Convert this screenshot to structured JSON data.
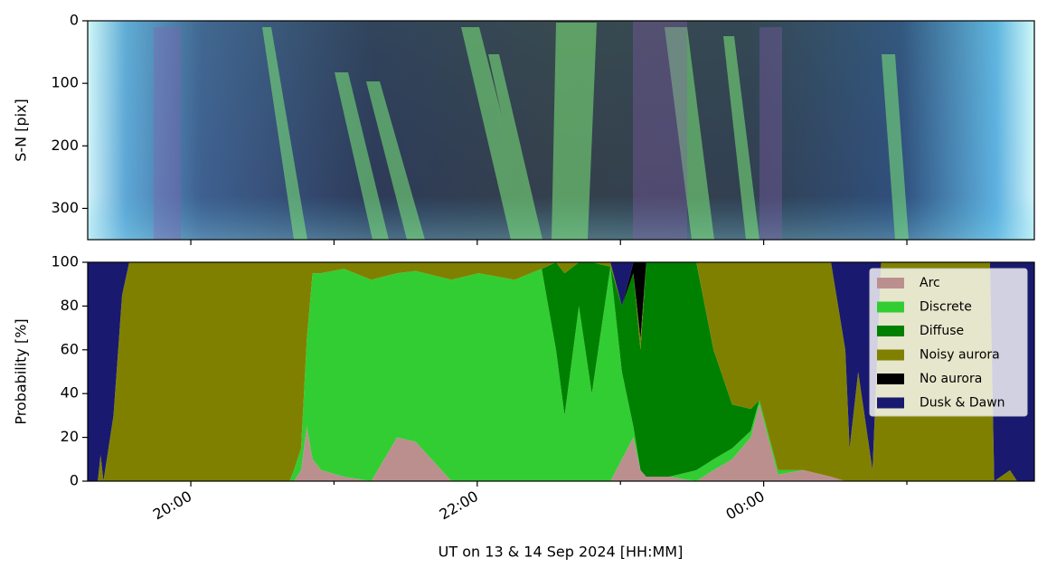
{
  "chart_data": [
    {
      "type": "image",
      "ylabel": "S-N [pix]",
      "xlim": [
        19.28,
        25.89
      ],
      "ylim": [
        350,
        0
      ],
      "yticks": [
        0,
        100,
        200,
        300
      ],
      "xticks": [
        20,
        21,
        22,
        23,
        24,
        25
      ]
    },
    {
      "type": "stacked-area",
      "xlabel": "UT on 13 & 14 Sep 2024 [HH:MM]",
      "ylabel": "Probability [%]",
      "xlim": [
        19.28,
        25.89
      ],
      "ylim": [
        0,
        100
      ],
      "yticks": [
        0,
        20,
        40,
        60,
        80,
        100
      ],
      "xticks": [
        {
          "value": 20,
          "label": "20:00"
        },
        {
          "value": 22,
          "label": "22:00"
        },
        {
          "value": 24,
          "label": "00:00"
        }
      ],
      "xminor": [
        21,
        23,
        25
      ],
      "legend": "upper right",
      "x": [
        19.28,
        19.35,
        19.37,
        19.39,
        19.46,
        19.52,
        19.57,
        19.93,
        20.69,
        20.72,
        20.77,
        20.81,
        20.85,
        20.91,
        21.07,
        21.26,
        21.44,
        21.57,
        21.82,
        22.01,
        22.26,
        22.45,
        22.55,
        22.61,
        22.71,
        22.8,
        22.93,
        23.01,
        23.09,
        23.14,
        23.18,
        23.34,
        23.53,
        23.65,
        23.78,
        23.91,
        23.97,
        24.1,
        24.28,
        24.47,
        24.57,
        24.6,
        24.66,
        24.76,
        24.82,
        24.98,
        25.36,
        25.58,
        25.61,
        25.72,
        25.77,
        25.89
      ],
      "series": [
        {
          "name": "Arc",
          "color": "#bc8f8f",
          "values": [
            0,
            0,
            0,
            0,
            0,
            0,
            0,
            0,
            0,
            0,
            5,
            25,
            10,
            5,
            2,
            0,
            20,
            18,
            0,
            0,
            0,
            0,
            0,
            0,
            0,
            0,
            0,
            10,
            20,
            5,
            2,
            2,
            0,
            5,
            10,
            20,
            35,
            3,
            5,
            2,
            0,
            0,
            0,
            0,
            0,
            0,
            0,
            0,
            0,
            0,
            0,
            0
          ]
        },
        {
          "name": "Discrete",
          "color": "#32cd32",
          "values": [
            0,
            0,
            0,
            0,
            0,
            0,
            0,
            0,
            0,
            5,
            10,
            40,
            85,
            90,
            95,
            92,
            75,
            78,
            92,
            95,
            92,
            97,
            60,
            30,
            80,
            40,
            98,
            40,
            5,
            0,
            0,
            0,
            5,
            5,
            5,
            3,
            2,
            2,
            0,
            0,
            0,
            0,
            0,
            0,
            0,
            0,
            0,
            0,
            0,
            0,
            0,
            0
          ]
        },
        {
          "name": "Diffuse",
          "color": "#008000",
          "values": [
            0,
            0,
            0,
            0,
            0,
            0,
            0,
            0,
            0,
            0,
            0,
            0,
            0,
            0,
            0,
            0,
            0,
            0,
            0,
            0,
            0,
            0,
            40,
            65,
            20,
            60,
            0,
            30,
            70,
            55,
            98,
            98,
            95,
            50,
            20,
            10,
            0,
            0,
            0,
            0,
            0,
            0,
            0,
            0,
            0,
            0,
            0,
            0,
            0,
            0,
            0,
            0
          ]
        },
        {
          "name": "Noisy aurora",
          "color": "#808000",
          "values": [
            0,
            0,
            12,
            0,
            30,
            85,
            100,
            100,
            100,
            95,
            85,
            35,
            5,
            5,
            3,
            8,
            5,
            4,
            8,
            5,
            8,
            3,
            0,
            5,
            0,
            0,
            2,
            0,
            0,
            5,
            0,
            0,
            0,
            40,
            65,
            67,
            63,
            95,
            95,
            98,
            60,
            15,
            50,
            5,
            100,
            100,
            100,
            100,
            0,
            5,
            0,
            0
          ]
        },
        {
          "name": "No aurora",
          "color": "#000000",
          "values": [
            0,
            0,
            0,
            0,
            0,
            0,
            0,
            0,
            0,
            0,
            0,
            0,
            0,
            0,
            0,
            0,
            0,
            0,
            0,
            0,
            0,
            0,
            0,
            0,
            0,
            0,
            0,
            0,
            5,
            35,
            0,
            0,
            0,
            0,
            0,
            0,
            0,
            0,
            0,
            0,
            0,
            0,
            0,
            0,
            0,
            0,
            0,
            0,
            0,
            0,
            0,
            0
          ]
        },
        {
          "name": "Dusk & Dawn",
          "color": "#191970",
          "values": [
            100,
            100,
            88,
            100,
            70,
            15,
            0,
            0,
            0,
            0,
            0,
            0,
            0,
            0,
            0,
            0,
            0,
            0,
            0,
            0,
            0,
            0,
            0,
            0,
            0,
            0,
            0,
            20,
            0,
            0,
            0,
            0,
            0,
            0,
            0,
            0,
            0,
            0,
            0,
            0,
            40,
            85,
            50,
            95,
            0,
            0,
            0,
            0,
            100,
            95,
            100,
            100
          ]
        }
      ]
    }
  ]
}
